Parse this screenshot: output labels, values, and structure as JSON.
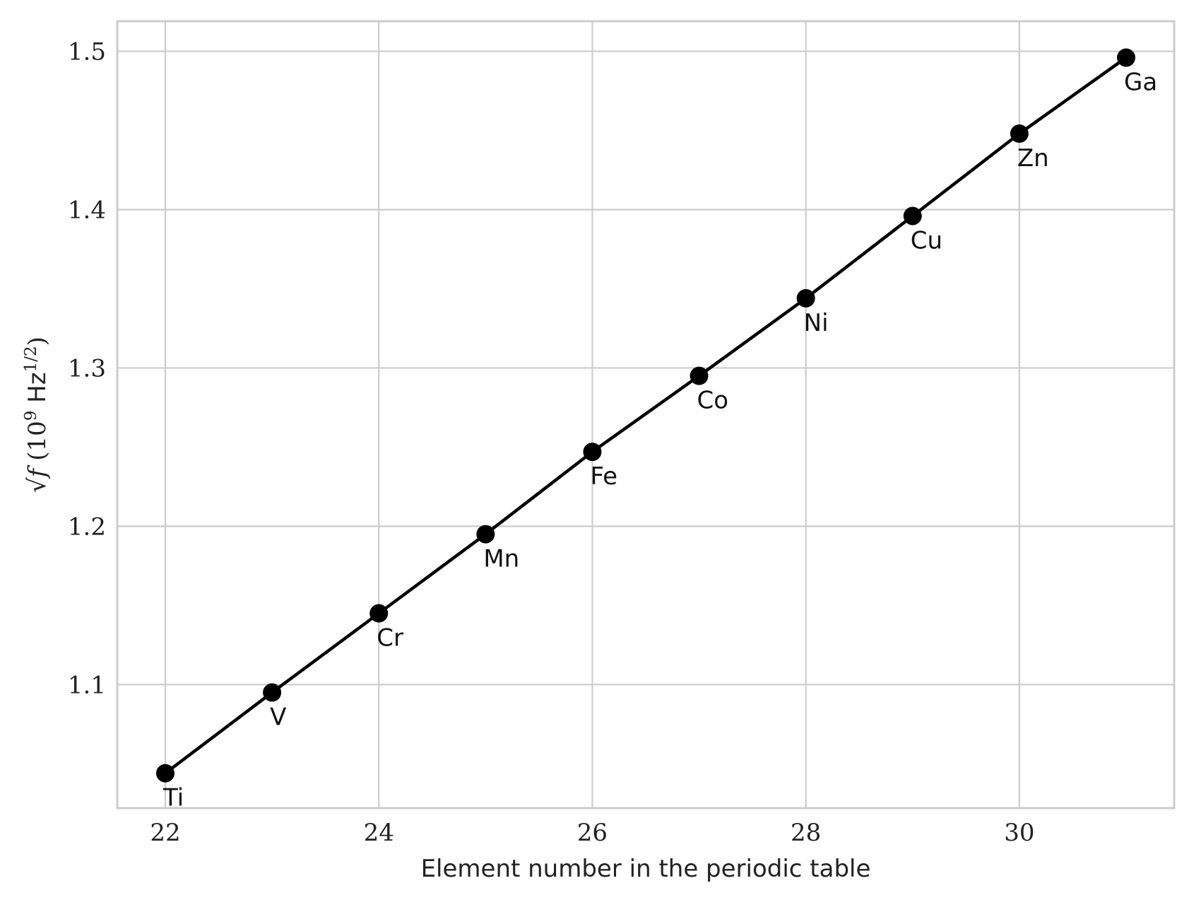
{
  "chart_data": {
    "type": "line",
    "xlabel": "Element number in the periodic table",
    "ylabel_parts": {
      "root": "√",
      "var": "f",
      "open": " (10",
      "exp": "9",
      "unit": " Hz",
      "unit_exp": "1/2",
      "close": ")"
    },
    "xlim": [
      21.55,
      31.45
    ],
    "ylim": [
      1.022,
      1.519
    ],
    "xticks": [
      {
        "value": 22,
        "label": "22"
      },
      {
        "value": 24,
        "label": "24"
      },
      {
        "value": 26,
        "label": "26"
      },
      {
        "value": 28,
        "label": "28"
      },
      {
        "value": 30,
        "label": "30"
      }
    ],
    "yticks": [
      {
        "value": 1.1,
        "label": "1.1"
      },
      {
        "value": 1.2,
        "label": "1.2"
      },
      {
        "value": 1.3,
        "label": "1.3"
      },
      {
        "value": 1.4,
        "label": "1.4"
      },
      {
        "value": 1.5,
        "label": "1.5"
      }
    ],
    "grid": true,
    "line_color": "#000000",
    "grid_color": "#cccccc",
    "points": [
      {
        "x": 22,
        "y": 1.044,
        "label": "Ti"
      },
      {
        "x": 23,
        "y": 1.095,
        "label": "V"
      },
      {
        "x": 24,
        "y": 1.145,
        "label": "Cr"
      },
      {
        "x": 25,
        "y": 1.195,
        "label": "Mn"
      },
      {
        "x": 26,
        "y": 1.247,
        "label": "Fe"
      },
      {
        "x": 27,
        "y": 1.295,
        "label": "Co"
      },
      {
        "x": 28,
        "y": 1.344,
        "label": "Ni"
      },
      {
        "x": 29,
        "y": 1.396,
        "label": "Cu"
      },
      {
        "x": 30,
        "y": 1.448,
        "label": "Zn"
      },
      {
        "x": 31,
        "y": 1.496,
        "label": "Ga"
      }
    ]
  }
}
